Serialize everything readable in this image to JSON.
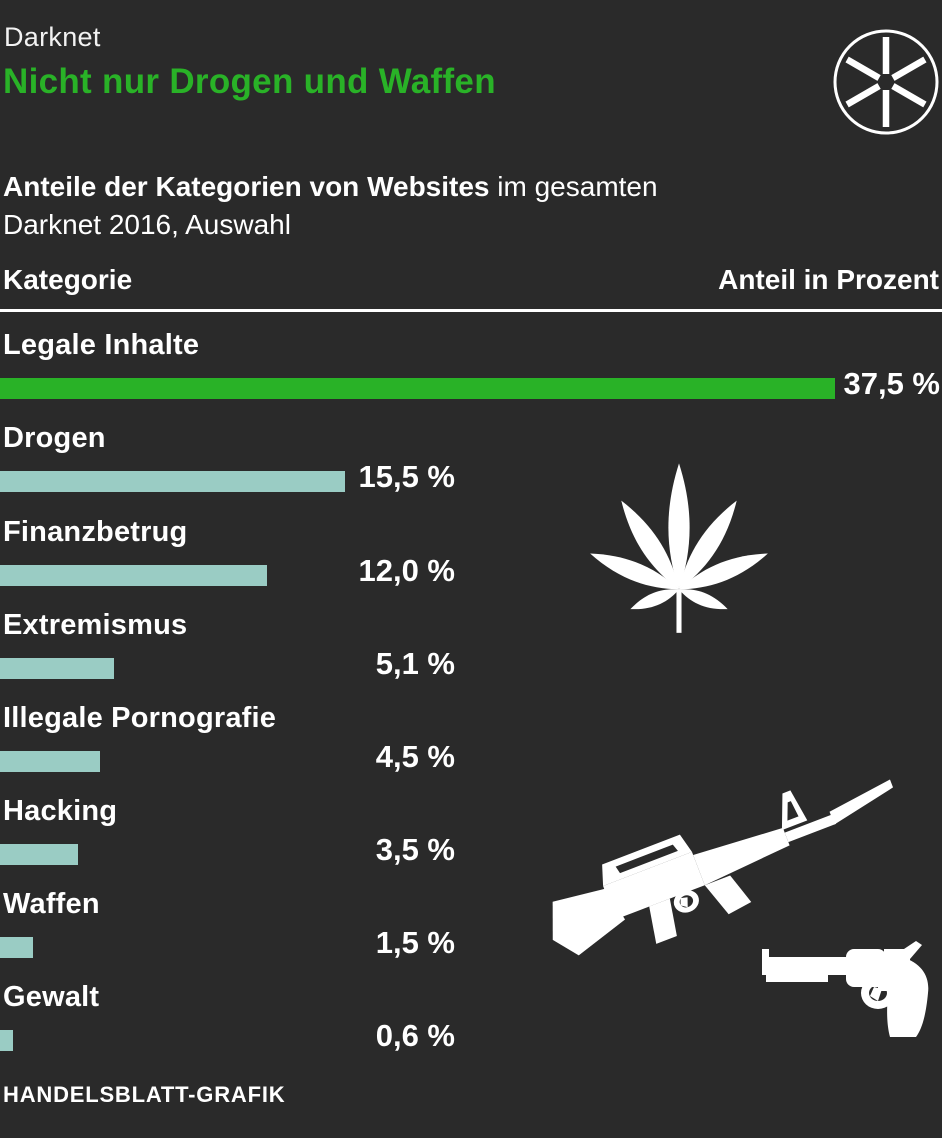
{
  "header": {
    "kicker": "Darknet",
    "title": "Nicht nur Drogen und Waffen",
    "logo_icon": "asterisk-circle-icon"
  },
  "subtitle": {
    "bold": "Anteile der Kategorien von Websites",
    "regular": " im gesamten",
    "line2": "Darknet 2016, Auswahl"
  },
  "table_header": {
    "left": "Kategorie",
    "right": "Anteil in Prozent"
  },
  "footer": {
    "credit": "HANDELSBLATT-GRAFIK"
  },
  "colors": {
    "background": "#2a2a2a",
    "accent_green": "#29b227",
    "bar_teal": "#9accc4",
    "text_white": "#ffffff"
  },
  "icons": [
    "cannabis-leaf-icon",
    "rifle-icon",
    "revolver-icon",
    "asterisk-circle-icon"
  ],
  "chart_data": {
    "type": "bar",
    "orientation": "horizontal",
    "title": "Nicht nur Drogen und Waffen",
    "subtitle": "Anteile der Kategorien von Websites im gesamten Darknet 2016, Auswahl",
    "categories": [
      "Legale Inhalte",
      "Drogen",
      "Finanzbetrug",
      "Extremismus",
      "Illegale Pornografie",
      "Hacking",
      "Waffen",
      "Gewalt"
    ],
    "values": [
      37.5,
      15.5,
      12.0,
      5.1,
      4.5,
      3.5,
      1.5,
      0.6
    ],
    "value_labels": [
      "37,5 %",
      "15,5 %",
      "12,0 %",
      "5,1 %",
      "4,5 %",
      "3,5 %",
      "1,5 %",
      "0,6 %"
    ],
    "xlabel": "Anteil in Prozent",
    "ylabel": "Kategorie",
    "xlim": [
      0,
      37.5
    ],
    "grid": false,
    "legend": false,
    "highlight_index": 0,
    "source": "HANDELSBLATT-GRAFIK"
  }
}
